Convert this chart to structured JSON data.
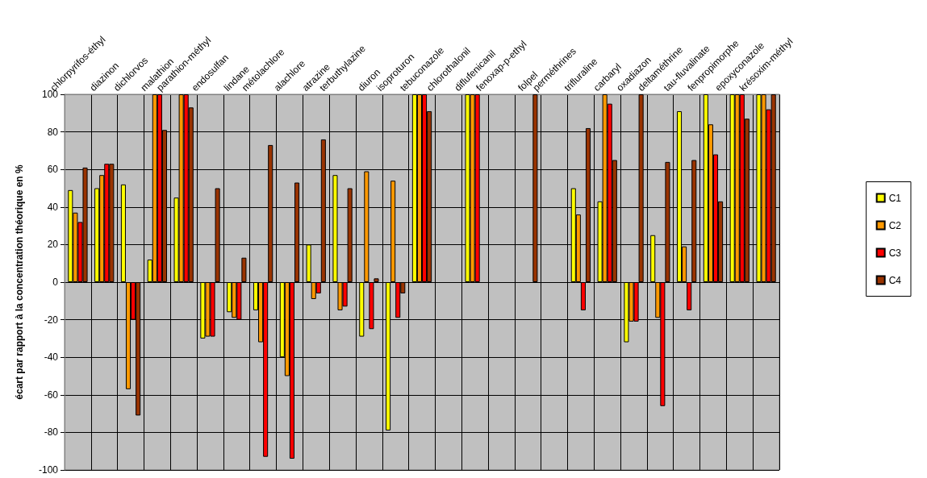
{
  "chart_data": {
    "type": "bar",
    "ylabel": "écart par rapport à la concentration théorique en %",
    "categories": [
      "chlorpyrifos-éthyl",
      "diazinon",
      "dichlorvos",
      "malathion",
      "parathion-méthyl",
      "endosulfan",
      "lindane",
      "métolachlore",
      "alachlore",
      "atrazine",
      "terbuthylazine",
      "diuron",
      "isoproturon",
      "tebuconazole",
      "chlorothalonil",
      "diflufenicanil",
      "fenoxap-p-ethyl",
      "folpel",
      "perméthrines",
      "trifluraline",
      "carbaryl",
      "oxadiazon",
      "deltaméthrine",
      "tau-fluvalinate",
      "fenpropimorphe",
      "epoxyconazole",
      "krésoxim-méthyl"
    ],
    "series": [
      {
        "name": "C1",
        "color": "#ffff00",
        "values": [
          49,
          50,
          52,
          12,
          45,
          -30,
          -16,
          -15,
          -40,
          20,
          57,
          -29,
          -79,
          100,
          null,
          100,
          null,
          null,
          null,
          50,
          43,
          -32,
          25,
          91,
          100,
          100,
          100
        ]
      },
      {
        "name": "C2",
        "color": "#ff9900",
        "values": [
          37,
          57,
          -57,
          100,
          100,
          -29,
          -19,
          -32,
          -50,
          -9,
          -15,
          59,
          54,
          100,
          null,
          100,
          null,
          null,
          null,
          36,
          100,
          -21,
          -19,
          19,
          84,
          100,
          100
        ]
      },
      {
        "name": "C3",
        "color": "#ff0000",
        "values": [
          32,
          63,
          -20,
          100,
          100,
          -29,
          -20,
          -93,
          -94,
          -6,
          -13,
          -25,
          -19,
          100,
          null,
          100,
          null,
          null,
          null,
          -15,
          95,
          -21,
          -66,
          -15,
          68,
          100,
          92
        ]
      },
      {
        "name": "C4",
        "color": "#993300",
        "values": [
          61,
          63,
          -71,
          81,
          93,
          50,
          13,
          73,
          53,
          76,
          50,
          2,
          -6,
          91,
          null,
          null,
          null,
          100,
          null,
          82,
          65,
          100,
          64,
          65,
          43,
          87,
          100
        ]
      }
    ],
    "ylim": [
      -100,
      100
    ],
    "yticks": [
      -100,
      -80,
      -60,
      -40,
      -20,
      0,
      20,
      40,
      60,
      80,
      100
    ],
    "grid": true,
    "legend": "right"
  }
}
